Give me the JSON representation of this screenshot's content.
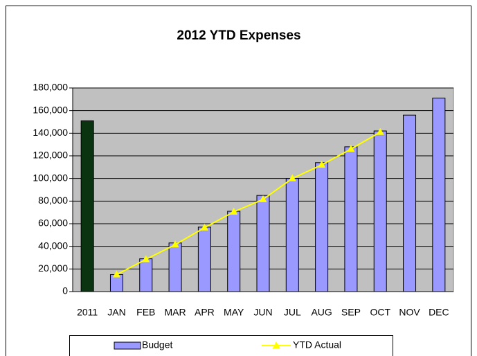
{
  "chart_data": {
    "type": "bar_line",
    "title": "2012 YTD Expenses",
    "categories": [
      "2011",
      "JAN",
      "FEB",
      "MAR",
      "APR",
      "MAY",
      "JUN",
      "JUL",
      "AUG",
      "SEP",
      "OCT",
      "NOV",
      "DEC"
    ],
    "series": [
      {
        "name": "Budget",
        "type": "bar",
        "color": "#9999ff",
        "colors": [
          "#0a3310",
          "#9999ff",
          "#9999ff",
          "#9999ff",
          "#9999ff",
          "#9999ff",
          "#9999ff",
          "#9999ff",
          "#9999ff",
          "#9999ff",
          "#9999ff",
          "#9999ff",
          "#9999ff"
        ],
        "values": [
          151000,
          15000,
          29000,
          43000,
          57000,
          71000,
          85000,
          100000,
          114000,
          128000,
          142000,
          156000,
          171000
        ]
      },
      {
        "name": "YTD Actual",
        "type": "line",
        "color": "#ffff00",
        "values": [
          null,
          15000,
          28500,
          41500,
          56500,
          70500,
          81500,
          100000,
          112000,
          126000,
          141000,
          null,
          null
        ]
      }
    ],
    "ylim": [
      0,
      180000
    ],
    "yticks": [
      0,
      {
        "value": 20000,
        "label": "20,000"
      },
      {
        "value": 40000,
        "label": "40,000"
      },
      {
        "value": 60000,
        "label": "60,000"
      },
      {
        "value": 80000,
        "label": "80,000"
      },
      {
        "value": 100000,
        "label": "100,000"
      },
      {
        "value": 120000,
        "label": "120,000"
      },
      {
        "value": 140000,
        "label": "140,000"
      },
      {
        "value": 160000,
        "label": "160,000"
      },
      {
        "value": 180000,
        "label": "180,000"
      }
    ],
    "grid": true,
    "plot_background": "#c0c0c0",
    "legend": "bottom"
  }
}
